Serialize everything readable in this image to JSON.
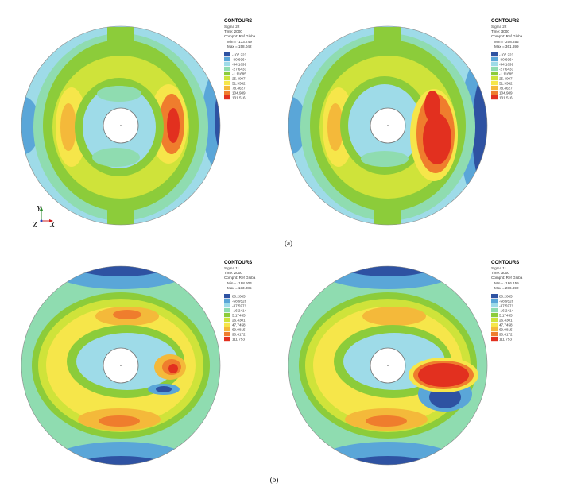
{
  "captions": [
    "(a)",
    "(b)"
  ],
  "axis_triad": {
    "y": "Y",
    "z": "Z",
    "x": "X"
  },
  "colors": {
    "c1": "#2e52a2",
    "c2": "#5aa6d8",
    "c3": "#9edbe8",
    "c4": "#8fdcb0",
    "c5": "#8ccc3a",
    "c6": "#cfe33a",
    "c7": "#f6e64a",
    "c8": "#f4b93a",
    "c9": "#ef7d2d",
    "c10": "#e2301f",
    "ring": "#555555"
  },
  "panels": [
    {
      "legend": {
        "title": "CONTOURS",
        "quantity": "Sigma 22",
        "time": "Time: 2000",
        "compnt": "Compnt: Ref Globa",
        "min": "Min = -133.749",
        "max": "Max = 158.042",
        "values": [
          "-107.223",
          "-80.6964",
          "-54.1699",
          "-27.6433",
          "-1.11685",
          "25.4097",
          "51.9362",
          "78.4627",
          "104.989",
          "131.516"
        ]
      }
    },
    {
      "legend": {
        "title": "CONTOURS",
        "quantity": "Sigma 22",
        "time": "Time: 3000",
        "compnt": "Compnt: Ref Globa",
        "min": "Min = -208.252",
        "max": "Max = 361.699",
        "values": [
          "-107.223",
          "-80.6964",
          "-54.1699",
          "-27.6433",
          "-1.11685",
          "25.4097",
          "51.9362",
          "78.4627",
          "104.989",
          "131.516"
        ]
      }
    },
    {
      "legend": {
        "title": "CONTOURS",
        "quantity": "Sigma 11",
        "time": "Time: 2000",
        "compnt": "Compnt: Ref Globa",
        "min": "Min = -198.604",
        "max": "Max = 133.085",
        "values": [
          "80.2085",
          "-58.9528",
          "-37.5971",
          "-16.2414",
          "5.17435",
          "26.4301",
          "47.7458",
          "69.0815",
          "90.4172",
          "111.753"
        ]
      }
    },
    {
      "legend": {
        "title": "CONTOURS",
        "quantity": "Sigma 11",
        "time": "Time: 3000",
        "compnt": "Compnt: Ref Globa",
        "min": "Min = -186.155",
        "max": "Max = 286.692",
        "values": [
          "80.2085",
          "-58.9528",
          "-37.5971",
          "-16.2414",
          "5.17435",
          "26.4301",
          "47.7458",
          "69.0815",
          "90.4172",
          "111.753"
        ]
      }
    }
  ]
}
